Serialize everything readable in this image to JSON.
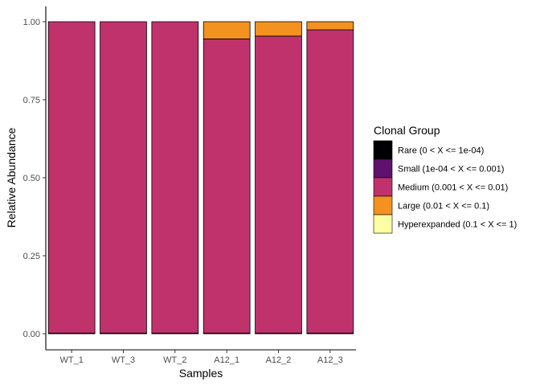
{
  "chart_data": {
    "type": "bar",
    "stacked": true,
    "xlabel": "Samples",
    "ylabel": "Relative Abundance",
    "ylim": [
      0,
      1
    ],
    "yticks": [
      "0.00",
      "0.25",
      "0.50",
      "0.75",
      "1.00"
    ],
    "ytick_values": [
      0,
      0.25,
      0.5,
      0.75,
      1.0
    ],
    "categories": [
      "WT_1",
      "WT_3",
      "WT_2",
      "A12_1",
      "A12_2",
      "A12_3"
    ],
    "legend": {
      "title": "Clonal Group",
      "position": "right"
    },
    "series": [
      {
        "name": "Rare (0 < X <= 1e-04)",
        "color": "#000004",
        "values": [
          0,
          0,
          0,
          0,
          0,
          0
        ]
      },
      {
        "name": "Small (1e-04 < X <= 0.001)",
        "color": "#5E126E",
        "values": [
          0.002,
          0.002,
          0.002,
          0.002,
          0.002,
          0.002
        ]
      },
      {
        "name": "Medium (0.001 < X <= 0.01)",
        "color": "#C0326C",
        "values": [
          0.998,
          0.998,
          0.998,
          0.943,
          0.952,
          0.972
        ]
      },
      {
        "name": "Large (0.01 < X <= 0.1)",
        "color": "#F3921F",
        "values": [
          0,
          0,
          0,
          0.055,
          0.046,
          0.026
        ]
      },
      {
        "name": "Hyperexpanded (0.1 < X <= 1)",
        "color": "#FCFFA4",
        "values": [
          0,
          0,
          0,
          0,
          0,
          0
        ]
      }
    ],
    "grid": false
  }
}
